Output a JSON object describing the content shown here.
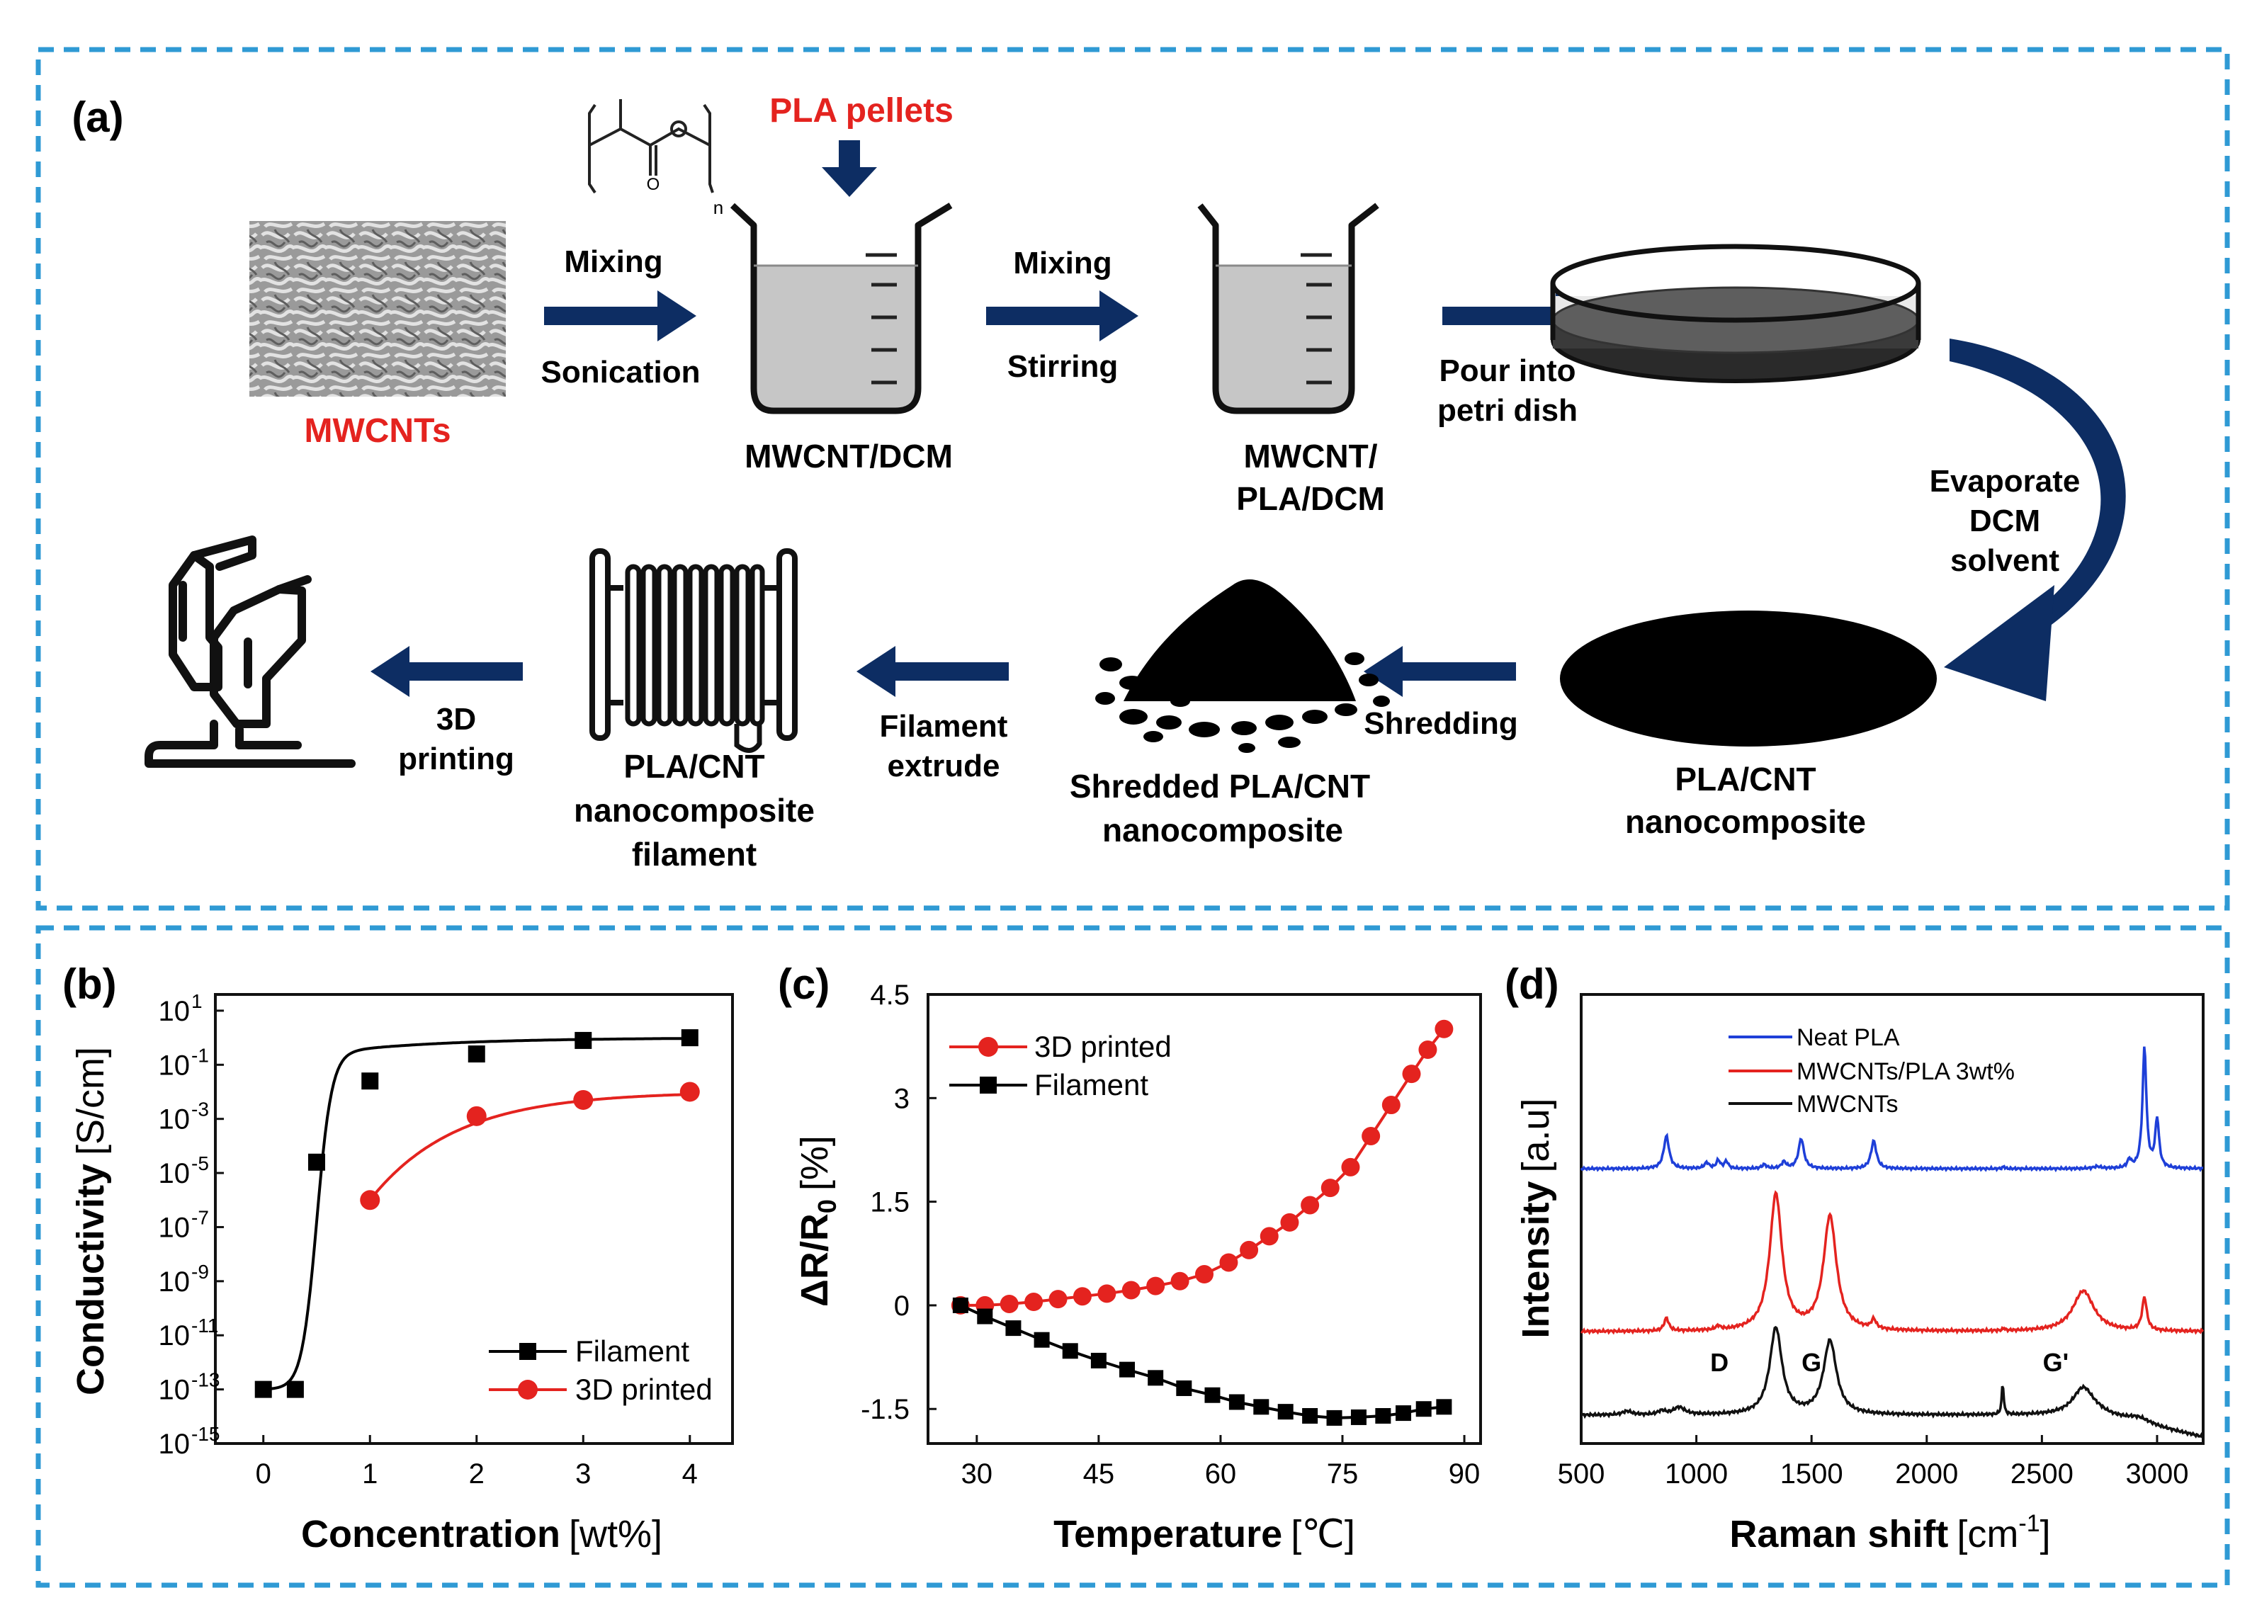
{
  "colors": {
    "arrow": "#0d2d63",
    "frame": "#2f9ad4",
    "red_label": "#e4231f",
    "filament": "#000000",
    "printed": "#e4231f",
    "neat_pla": "#1e3fd8",
    "mwcnt_pla": "#e4231f",
    "mwcnts": "#111111"
  },
  "panel_a": {
    "label": "(a)",
    "pla_pellets": "PLA pellets",
    "pla_structure_n": "n",
    "mwcnts": "MWCNTs",
    "step1_top": "Mixing",
    "step1_bottom": "Sonication",
    "beaker1": "MWCNT/DCM",
    "step2_top": "Mixing",
    "step2_bottom": "Stirring",
    "beaker2_line1": "MWCNT/",
    "beaker2_line2": "PLA/DCM",
    "step3_line1": "Pour into",
    "step3_line2": "petri dish",
    "step4_line1": "Evaporate",
    "step4_line2": "DCM",
    "step4_line3": "solvent",
    "disc_line1": "PLA/CNT",
    "disc_line2": "nanocomposite",
    "step5": "Shredding",
    "shredded_line1": "Shredded PLA/CNT",
    "shredded_line2": "nanocomposite",
    "step6_line1": "Filament",
    "step6_line2": "extrude",
    "filament_line1": "PLA/CNT",
    "filament_line2": "nanocomposite",
    "filament_line3": "filament",
    "step7_line1": "3D",
    "step7_line2": "printing"
  },
  "chart_data": [
    {
      "panel": "(b)",
      "type": "scatter",
      "xlabel": "Concentration",
      "xlabel_unit": "[wt%]",
      "ylabel": "Conductivity",
      "ylabel_unit": "[S/cm]",
      "xlim": [
        -0.45,
        4.4
      ],
      "ylim_log10": [
        -15,
        1.6
      ],
      "x_ticks": [
        "0",
        "1",
        "2",
        "3",
        "4"
      ],
      "y_ticks": [
        {
          "base": "10",
          "exp": "1"
        },
        {
          "base": "10",
          "exp": "-1"
        },
        {
          "base": "10",
          "exp": "-3"
        },
        {
          "base": "10",
          "exp": "-5"
        },
        {
          "base": "10",
          "exp": "-7"
        },
        {
          "base": "10",
          "exp": "-9"
        },
        {
          "base": "10",
          "exp": "-11"
        },
        {
          "base": "10",
          "exp": "-13"
        },
        {
          "base": "10",
          "exp": "-15"
        }
      ],
      "legend_position": "bottom-right",
      "series": [
        {
          "name": "Filament",
          "marker": "square",
          "color": "#000000",
          "x": [
            0,
            0.3,
            0.5,
            1,
            2,
            3,
            4
          ],
          "log10_y": [
            -13,
            -13,
            -4.6,
            -1.6,
            -0.6,
            -0.1,
            0.0
          ]
        },
        {
          "name": "3D printed",
          "marker": "circle",
          "color": "#e4231f",
          "x": [
            1,
            2,
            3,
            4
          ],
          "log10_y": [
            -6,
            -2.9,
            -2.3,
            -2.0
          ]
        }
      ]
    },
    {
      "panel": "(c)",
      "type": "line",
      "xlabel": "Temperature",
      "xlabel_unit": "[℃]",
      "ylabel": "ΔR/R",
      "ylabel_sub": "0",
      "ylabel_unit": "[%]",
      "xlim": [
        24,
        92
      ],
      "ylim": [
        -2,
        4.5
      ],
      "x_ticks": [
        "30",
        "45",
        "60",
        "75",
        "90"
      ],
      "y_ticks": [
        "4.5",
        "3",
        "1.5",
        "0",
        "-1.5"
      ],
      "legend_position": "top-left",
      "series": [
        {
          "name": "3D printed",
          "marker": "circle",
          "color": "#e4231f",
          "x": [
            28,
            31,
            34,
            37,
            40,
            43,
            46,
            49,
            52,
            55,
            58,
            61,
            63.5,
            66,
            68.5,
            71,
            73.5,
            76,
            78.5,
            81,
            83.5,
            85.5,
            87.5
          ],
          "y": [
            0,
            0,
            0.02,
            0.05,
            0.09,
            0.13,
            0.17,
            0.22,
            0.28,
            0.35,
            0.45,
            0.62,
            0.8,
            1.0,
            1.2,
            1.45,
            1.7,
            2.0,
            2.45,
            2.9,
            3.35,
            3.7,
            4.0
          ]
        },
        {
          "name": "Filament",
          "marker": "square",
          "color": "#000000",
          "x": [
            28,
            31,
            34.5,
            38,
            41.5,
            45,
            48.5,
            52,
            55.5,
            59,
            62,
            65,
            68,
            71,
            74,
            77,
            80,
            82.5,
            85,
            87.5
          ],
          "y": [
            0,
            -0.16,
            -0.33,
            -0.5,
            -0.66,
            -0.8,
            -0.93,
            -1.05,
            -1.2,
            -1.3,
            -1.4,
            -1.47,
            -1.54,
            -1.6,
            -1.63,
            -1.62,
            -1.6,
            -1.56,
            -1.5,
            -1.47
          ]
        }
      ]
    },
    {
      "panel": "(d)",
      "type": "line",
      "xlabel": "Raman shift",
      "xlabel_unit": "[cm",
      "xlabel_unit_sup": "-1",
      "xlabel_unit_end": "]",
      "ylabel": "Intensity",
      "ylabel_unit": "[a.u]",
      "xlim": [
        500,
        3200
      ],
      "x_ticks": [
        "500",
        "1000",
        "1500",
        "2000",
        "2500",
        "3000"
      ],
      "peak_labels": [
        {
          "text": "D",
          "x": 1100
        },
        {
          "text": "G",
          "x": 1500
        },
        {
          "text": "G'",
          "x": 2560
        }
      ],
      "legend_position": "top-left",
      "series": [
        {
          "name": "Neat PLA",
          "color": "#1e3fd8",
          "baseline": 0.0,
          "peaks": [
            [
              870,
              1.0,
              14
            ],
            [
              1045,
              0.18,
              12
            ],
            [
              1095,
              0.25,
              10
            ],
            [
              1130,
              0.22,
              10
            ],
            [
              1295,
              0.12,
              12
            ],
            [
              1380,
              0.2,
              12
            ],
            [
              1455,
              0.92,
              14
            ],
            [
              1770,
              0.85,
              14
            ],
            [
              2335,
              0.07,
              5
            ],
            [
              2740,
              0.06,
              20
            ],
            [
              2880,
              0.25,
              10
            ],
            [
              2945,
              3.7,
              10
            ],
            [
              3000,
              1.5,
              10
            ]
          ]
        },
        {
          "name": "MWCNTs/PLA 3wt%",
          "color": "#e4231f",
          "baseline": 0.0,
          "peaks": [
            [
              870,
              0.35,
              12
            ],
            [
              1095,
              0.1,
              12
            ],
            [
              1345,
              3.7,
              32
            ],
            [
              1580,
              3.1,
              34
            ],
            [
              1770,
              0.25,
              12
            ],
            [
              2335,
              0.07,
              5
            ],
            [
              2680,
              1.1,
              55
            ],
            [
              2945,
              0.9,
              12
            ]
          ]
        },
        {
          "name": "MWCNTs",
          "color": "#111111",
          "baseline": 0.0,
          "peaks": [
            [
              700,
              0.1,
              25
            ],
            [
              850,
              0.1,
              20
            ],
            [
              925,
              0.2,
              30
            ],
            [
              1345,
              2.35,
              32
            ],
            [
              1580,
              2.0,
              34
            ],
            [
              2330,
              0.85,
              5
            ],
            [
              2680,
              0.75,
              55
            ],
            [
              2920,
              0.15,
              60
            ]
          ]
        }
      ]
    },
    {
      "panel": "(b-c-d labels)",
      "type": "table",
      "labels": [
        "(b)",
        "(c)",
        "(d)"
      ]
    }
  ]
}
